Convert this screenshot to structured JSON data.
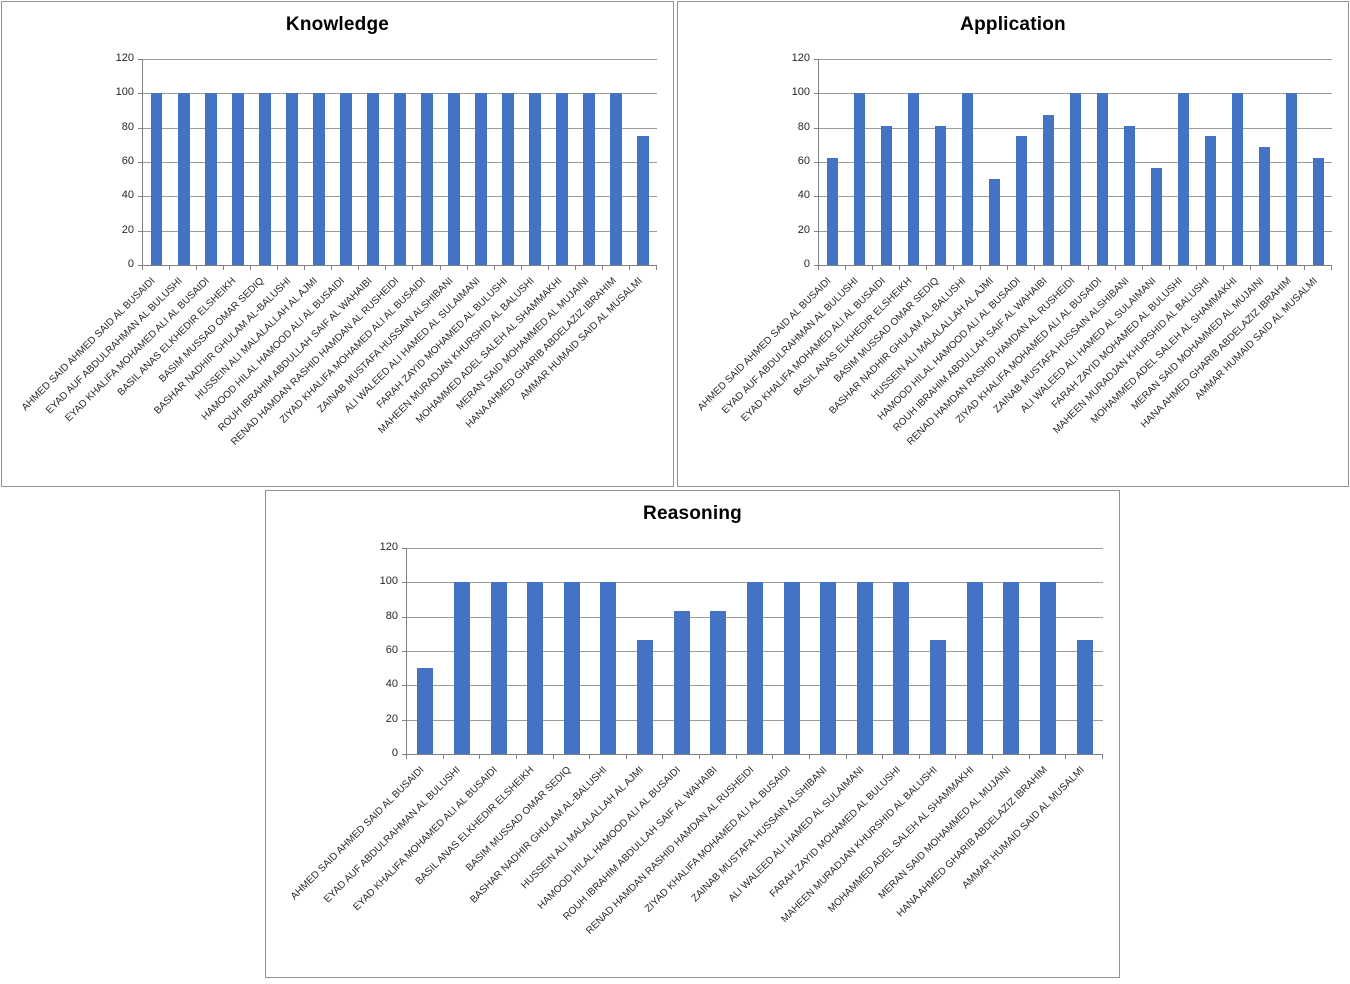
{
  "colors": {
    "bar": "#4472C4",
    "gridline": "#9B9B9B",
    "axis_line": "#808080",
    "panel_border": "#929292",
    "tick_text": "#262626",
    "title_text": "#000000",
    "background": "#FFFFFF"
  },
  "y_axis": {
    "min": 0,
    "max": 120,
    "step": 20,
    "tick_labels": [
      "0",
      "20",
      "40",
      "60",
      "80",
      "100",
      "120"
    ]
  },
  "chart_data": [
    {
      "type": "bar",
      "title": "Knowledge",
      "xlabel": "",
      "ylabel": "",
      "ylim": [
        0,
        120
      ],
      "grid": true,
      "legend": false,
      "categories": [
        "AHMED SAID AHMED SAID AL BUSAIDI",
        "EYAD AUF ABDULRAHMAN AL BULUSHI",
        "EYAD KHALIFA MOHAMED ALI AL BUSAIDI",
        "BASIL ANAS ELKHEDIR ELSHEIKH",
        "BASIM MUSSAD OMAR SEDIQ",
        "BASHAR NADHIR GHULAM AL-BALUSHI",
        "HUSSEIN ALI MALALALLAH AL AJMI",
        "HAMOOD HILAL HAMOOD ALI AL BUSAIDI",
        "ROUH IBRAHIM ABDULLAH SAIF AL WAHAIBI",
        "RENAD HAMDAN RASHID HAMDAN AL RUSHEIDI",
        "ZIYAD KHALIFA MOHAMED ALI AL BUSAIDI",
        "ZAINAB MUSTAFA HUSSAIN ALSHIBANI",
        "ALI WALEED ALI HAMED AL SULAIMANI",
        "FARAH ZAYID MOHAMED AL BULUSHI",
        "MAHEEN MURADJAN KHURSHID AL BALUSHI",
        "MOHAMMED ADEL SALEH AL SHAMMAKHI",
        "MERAN SAID MOHAMMED AL MUJAINI",
        "HANA AHMED GHARIB ABDELAZIZ IBRAHIM",
        "AMMAR HUMAID SAID AL MUSALMI"
      ],
      "values": [
        100,
        100,
        100,
        100,
        100,
        100,
        100,
        100,
        100,
        100,
        100,
        100,
        100,
        100,
        100,
        100,
        100,
        100,
        75
      ]
    },
    {
      "type": "bar",
      "title": "Application",
      "xlabel": "",
      "ylabel": "",
      "ylim": [
        0,
        120
      ],
      "grid": true,
      "legend": false,
      "categories": [
        "AHMED SAID AHMED SAID AL BUSAIDI",
        "EYAD AUF ABDULRAHMAN AL BULUSHI",
        "EYAD KHALIFA MOHAMED ALI AL BUSAIDI",
        "BASIL ANAS ELKHEDIR ELSHEIKH",
        "BASIM MUSSAD OMAR SEDIQ",
        "BASHAR NADHIR GHULAM AL-BALUSHI",
        "HUSSEIN ALI MALALALLAH AL AJMI",
        "HAMOOD HILAL HAMOOD ALI AL BUSAIDI",
        "ROUH IBRAHIM ABDULLAH SAIF AL WAHAIBI",
        "RENAD HAMDAN RASHID HAMDAN AL RUSHEIDI",
        "ZIYAD KHALIFA MOHAMED ALI AL BUSAIDI",
        "ZAINAB MUSTAFA HUSSAIN ALSHIBANI",
        "ALI WALEED ALI HAMED AL SULAIMANI",
        "FARAH ZAYID MOHAMED AL BULUSHI",
        "MAHEEN MURADJAN KHURSHID AL BALUSHI",
        "MOHAMMED ADEL SALEH AL SHAMMAKHI",
        "MERAN SAID MOHAMMED AL MUJAINI",
        "HANA AHMED GHARIB ABDELAZIZ IBRAHIM",
        "AMMAR HUMAID SAID AL MUSALMI"
      ],
      "values": [
        62.5,
        100,
        81.25,
        100,
        81.25,
        100,
        50,
        75,
        87.5,
        100,
        100,
        81.25,
        56.25,
        100,
        75,
        100,
        68.75,
        100,
        62.5
      ]
    },
    {
      "type": "bar",
      "title": "Reasoning",
      "xlabel": "",
      "ylabel": "",
      "ylim": [
        0,
        120
      ],
      "grid": true,
      "legend": false,
      "categories": [
        "AHMED SAID AHMED SAID AL BUSAIDI",
        "EYAD AUF ABDULRAHMAN AL BULUSHI",
        "EYAD KHALIFA MOHAMED ALI AL BUSAIDI",
        "BASIL ANAS ELKHEDIR ELSHEIKH",
        "BASIM MUSSAD OMAR SEDIQ",
        "BASHAR NADHIR GHULAM AL-BALUSHI",
        "HUSSEIN ALI MALALALLAH AL AJMI",
        "HAMOOD HILAL HAMOOD ALI AL BUSAIDI",
        "ROUH IBRAHIM ABDULLAH SAIF AL WAHAIBI",
        "RENAD HAMDAN RASHID HAMDAN AL RUSHEIDI",
        "ZIYAD KHALIFA MOHAMED ALI AL BUSAIDI",
        "ZAINAB MUSTAFA HUSSAIN ALSHIBANI",
        "ALI WALEED ALI HAMED AL SULAIMANI",
        "FARAH ZAYID MOHAMED AL BULUSHI",
        "MAHEEN MURADJAN KHURSHID AL BALUSHI",
        "MOHAMMED ADEL SALEH AL SHAMMAKHI",
        "MERAN SAID MOHAMMED AL MUJAINI",
        "HANA AHMED GHARIB ABDELAZIZ IBRAHIM",
        "AMMAR HUMAID SAID AL MUSALMI"
      ],
      "values": [
        50,
        100,
        100,
        100,
        100,
        100,
        66.67,
        83.33,
        83.33,
        100,
        100,
        100,
        100,
        100,
        66.67,
        100,
        100,
        100,
        66.67
      ]
    }
  ]
}
